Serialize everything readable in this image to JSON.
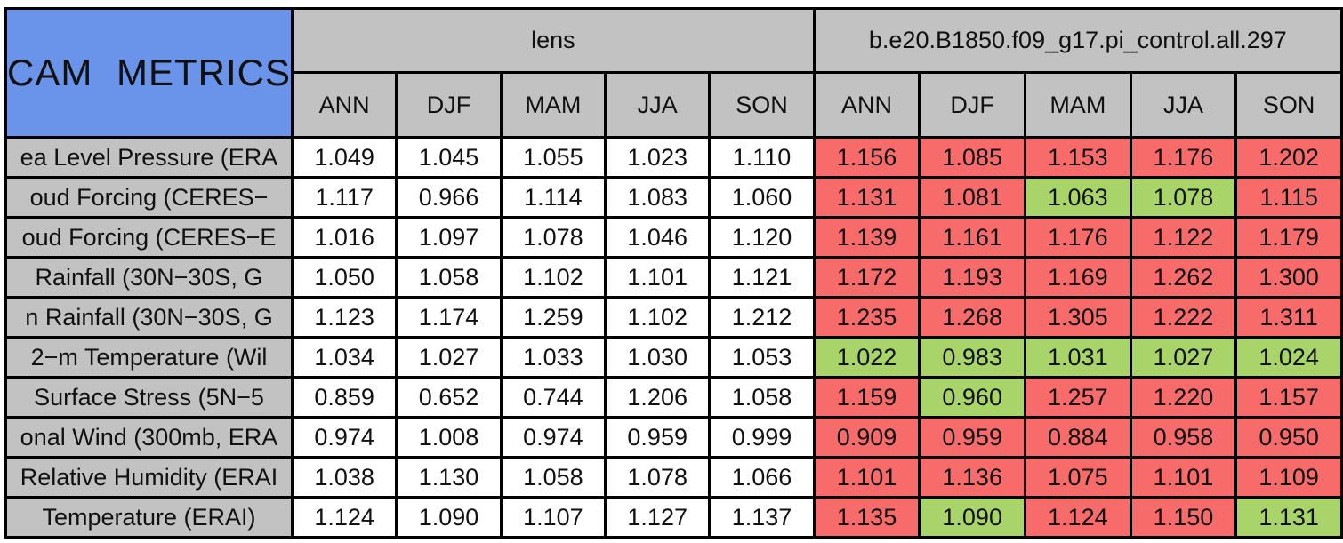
{
  "chart_data": {
    "type": "table",
    "title": "CAM METRICS",
    "column_groups": [
      "lens",
      "b.e20.B1850.f09_g17.pi_control.all.297"
    ],
    "seasons": [
      "ANN",
      "DJF",
      "MAM",
      "JJA",
      "SON"
    ],
    "colors": {
      "title_bg": "#6994e9",
      "header_bg": "#c2c2c2",
      "value_bg": "#ffffff",
      "worse": "#f76b6b",
      "better": "#a8d46a",
      "border": "#000000"
    },
    "rows": [
      {
        "label": "ea Level Pressure (ERA",
        "lens": [
          "1.049",
          "1.045",
          "1.055",
          "1.023",
          "1.110"
        ],
        "control": [
          "1.156",
          "1.085",
          "1.153",
          "1.176",
          "1.202"
        ],
        "control_status": [
          "worse",
          "worse",
          "worse",
          "worse",
          "worse"
        ]
      },
      {
        "label": "oud Forcing (CERES−",
        "lens": [
          "1.117",
          "0.966",
          "1.114",
          "1.083",
          "1.060"
        ],
        "control": [
          "1.131",
          "1.081",
          "1.063",
          "1.078",
          "1.115"
        ],
        "control_status": [
          "worse",
          "worse",
          "better",
          "better",
          "worse"
        ]
      },
      {
        "label": "oud Forcing (CERES−E",
        "lens": [
          "1.016",
          "1.097",
          "1.078",
          "1.046",
          "1.120"
        ],
        "control": [
          "1.139",
          "1.161",
          "1.176",
          "1.122",
          "1.179"
        ],
        "control_status": [
          "worse",
          "worse",
          "worse",
          "worse",
          "worse"
        ]
      },
      {
        "label": "Rainfall (30N−30S, G",
        "lens": [
          "1.050",
          "1.058",
          "1.102",
          "1.101",
          "1.121"
        ],
        "control": [
          "1.172",
          "1.193",
          "1.169",
          "1.262",
          "1.300"
        ],
        "control_status": [
          "worse",
          "worse",
          "worse",
          "worse",
          "worse"
        ]
      },
      {
        "label": "n Rainfall (30N−30S, G",
        "lens": [
          "1.123",
          "1.174",
          "1.259",
          "1.102",
          "1.212"
        ],
        "control": [
          "1.235",
          "1.268",
          "1.305",
          "1.222",
          "1.311"
        ],
        "control_status": [
          "worse",
          "worse",
          "worse",
          "worse",
          "worse"
        ]
      },
      {
        "label": "2−m Temperature (Wil",
        "lens": [
          "1.034",
          "1.027",
          "1.033",
          "1.030",
          "1.053"
        ],
        "control": [
          "1.022",
          "0.983",
          "1.031",
          "1.027",
          "1.024"
        ],
        "control_status": [
          "better",
          "better",
          "better",
          "better",
          "better"
        ]
      },
      {
        "label": "Surface Stress (5N−5",
        "lens": [
          "0.859",
          "0.652",
          "0.744",
          "1.206",
          "1.058"
        ],
        "control": [
          "1.159",
          "0.960",
          "1.257",
          "1.220",
          "1.157"
        ],
        "control_status": [
          "worse",
          "better",
          "worse",
          "worse",
          "worse"
        ]
      },
      {
        "label": "onal Wind (300mb, ERA",
        "lens": [
          "0.974",
          "1.008",
          "0.974",
          "0.959",
          "0.999"
        ],
        "control": [
          "0.909",
          "0.959",
          "0.884",
          "0.958",
          "0.950"
        ],
        "control_status": [
          "worse",
          "worse",
          "worse",
          "worse",
          "worse"
        ]
      },
      {
        "label": "Relative Humidity (ERAI",
        "lens": [
          "1.038",
          "1.130",
          "1.058",
          "1.078",
          "1.066"
        ],
        "control": [
          "1.101",
          "1.136",
          "1.075",
          "1.101",
          "1.109"
        ],
        "control_status": [
          "worse",
          "worse",
          "worse",
          "worse",
          "worse"
        ]
      },
      {
        "label": "Temperature (ERAI)",
        "lens": [
          "1.124",
          "1.090",
          "1.107",
          "1.127",
          "1.137"
        ],
        "control": [
          "1.135",
          "1.090",
          "1.124",
          "1.150",
          "1.131"
        ],
        "control_status": [
          "worse",
          "better",
          "worse",
          "worse",
          "better"
        ]
      }
    ]
  }
}
